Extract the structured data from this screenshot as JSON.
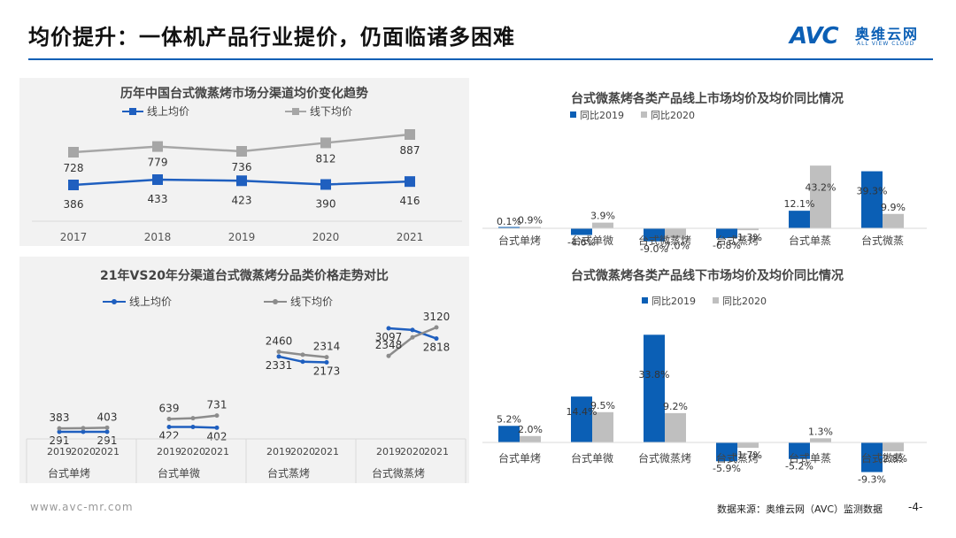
{
  "page": {
    "title": "均价提升：一体机产品行业提价，仍面临诸多困难",
    "logo_mark": "AVC",
    "logo_cn": "奥维云网",
    "logo_en": "ALL VIEW CLOUD",
    "footer_url": "www.avc-mr.com",
    "footer_source": "数据来源：奥维云网（AVC）监测数据",
    "page_number": "-4-"
  },
  "colors": {
    "blue": "#0b5fb5",
    "gray": "#a6a6a6",
    "gray_bar": "#bfbfbf"
  },
  "chart_data": [
    {
      "type": "line",
      "title": "历年中国台式微蒸烤市场分渠道均价变化趋势",
      "categories": [
        "2017",
        "2018",
        "2019",
        "2020",
        "2021"
      ],
      "series": [
        {
          "name": "线上均价",
          "values": [
            386,
            433,
            423,
            390,
            416
          ],
          "color": "#1f5fbf"
        },
        {
          "name": "线下均价",
          "values": [
            728,
            779,
            736,
            812,
            887
          ],
          "color": "#a6a6a6"
        }
      ],
      "legend": "top"
    },
    {
      "type": "line",
      "title": "21年VS20年分渠道台式微蒸烤分品类价格走势对比",
      "groups": [
        "台式单烤",
        "台式单微",
        "台式蒸烤",
        "台式微蒸烤"
      ],
      "years": [
        "2019",
        "2020",
        "2021"
      ],
      "series": [
        {
          "name": "线上均价",
          "color": "#1f5fbf",
          "values": [
            [
              291,
              291,
              291
            ],
            [
              422,
              422,
              402
            ],
            [
              2331,
              2190,
              2173
            ],
            [
              3097,
              3050,
              2818
            ]
          ]
        },
        {
          "name": "线下均价",
          "color": "#8c8c8c",
          "values": [
            [
              383,
              390,
              403
            ],
            [
              639,
              660,
              731
            ],
            [
              2460,
              2380,
              2314
            ],
            [
              2348,
              2850,
              3120
            ]
          ]
        }
      ],
      "labels": [
        {
          "series": 0,
          "group": 0,
          "year": 0,
          "text": "291"
        },
        {
          "series": 0,
          "group": 0,
          "year": 2,
          "text": "291"
        },
        {
          "series": 1,
          "group": 0,
          "year": 0,
          "text": "383"
        },
        {
          "series": 1,
          "group": 0,
          "year": 2,
          "text": "403"
        },
        {
          "series": 0,
          "group": 1,
          "year": 0,
          "text": "422"
        },
        {
          "series": 0,
          "group": 1,
          "year": 2,
          "text": "402"
        },
        {
          "series": 1,
          "group": 1,
          "year": 0,
          "text": "639"
        },
        {
          "series": 1,
          "group": 1,
          "year": 2,
          "text": "731"
        },
        {
          "series": 0,
          "group": 2,
          "year": 0,
          "text": "2331"
        },
        {
          "series": 0,
          "group": 2,
          "year": 2,
          "text": "2173"
        },
        {
          "series": 1,
          "group": 2,
          "year": 0,
          "text": "2460"
        },
        {
          "series": 1,
          "group": 2,
          "year": 2,
          "text": "2314"
        },
        {
          "series": 0,
          "group": 3,
          "year": 0,
          "text": "3097"
        },
        {
          "series": 0,
          "group": 3,
          "year": 2,
          "text": "2818"
        },
        {
          "series": 1,
          "group": 3,
          "year": 0,
          "text": "2348"
        },
        {
          "series": 1,
          "group": 3,
          "year": 2,
          "text": "3120"
        }
      ],
      "legend": "top"
    },
    {
      "type": "bar",
      "title": "台式微蒸烤各类产品线上市场均价及均价同比情况",
      "categories": [
        "台式单烤",
        "台式单微",
        "台式微蒸烤",
        "台式蒸烤",
        "台式单蒸",
        "台式微蒸"
      ],
      "series": [
        {
          "name": "同比2019",
          "values": [
            0.1,
            -4.6,
            -9.0,
            -6.8,
            12.1,
            39.3
          ],
          "labels": [
            "0.1%",
            "-4.6%",
            "-9.0%",
            "-6.8%",
            "12.1%",
            "39.3%"
          ],
          "color": "#0b5fb5"
        },
        {
          "name": "同比2020",
          "values": [
            0.9,
            3.9,
            -7.0,
            -1.3,
            43.2,
            9.9
          ],
          "labels": [
            "0.9%",
            "3.9%",
            "-7.0%",
            "-1.3%",
            "43.2%",
            "9.9%"
          ],
          "color": "#bfbfbf"
        }
      ],
      "legend": "top-left"
    },
    {
      "type": "bar",
      "title": "台式微蒸烤各类产品线下市场均价及均价同比情况",
      "categories": [
        "台式单烤",
        "台式单微",
        "台式微蒸烤",
        "台式蒸烤",
        "台式单蒸",
        "台式微蒸"
      ],
      "series": [
        {
          "name": "同比2019",
          "values": [
            5.2,
            14.4,
            33.8,
            -5.9,
            -5.2,
            -9.3
          ],
          "labels": [
            "5.2%",
            "14.4%",
            "33.8%",
            "-5.9%",
            "-5.2%",
            "-9.3%"
          ],
          "color": "#0b5fb5"
        },
        {
          "name": "同比2020",
          "values": [
            2.0,
            9.5,
            9.2,
            -1.7,
            1.3,
            -2.8
          ],
          "labels": [
            "2.0%",
            "9.5%",
            "9.2%",
            "-1.7%",
            "1.3%",
            "-2.8%"
          ],
          "color": "#bfbfbf"
        }
      ],
      "legend": "top-left"
    }
  ]
}
